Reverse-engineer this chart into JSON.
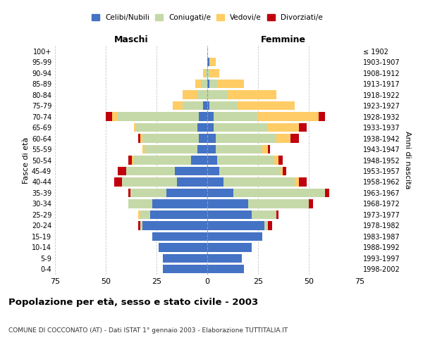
{
  "age_groups": [
    "0-4",
    "5-9",
    "10-14",
    "15-19",
    "20-24",
    "25-29",
    "30-34",
    "35-39",
    "40-44",
    "45-49",
    "50-54",
    "55-59",
    "60-64",
    "65-69",
    "70-74",
    "75-79",
    "80-84",
    "85-89",
    "90-94",
    "95-99",
    "100+"
  ],
  "birth_years": [
    "1998-2002",
    "1993-1997",
    "1988-1992",
    "1983-1987",
    "1978-1982",
    "1973-1977",
    "1968-1972",
    "1963-1967",
    "1958-1962",
    "1953-1957",
    "1948-1952",
    "1943-1947",
    "1938-1942",
    "1933-1937",
    "1928-1932",
    "1923-1927",
    "1918-1922",
    "1913-1917",
    "1908-1912",
    "1903-1907",
    "≤ 1902"
  ],
  "males": {
    "celibi": [
      22,
      22,
      24,
      27,
      32,
      28,
      27,
      20,
      15,
      16,
      8,
      5,
      4,
      5,
      4,
      2,
      0,
      0,
      0,
      0,
      0
    ],
    "coniugati": [
      0,
      0,
      0,
      0,
      1,
      5,
      12,
      18,
      27,
      24,
      28,
      26,
      28,
      30,
      40,
      10,
      5,
      3,
      1,
      0,
      0
    ],
    "vedovi": [
      0,
      0,
      0,
      0,
      0,
      1,
      0,
      0,
      0,
      0,
      1,
      1,
      1,
      1,
      3,
      5,
      7,
      3,
      1,
      0,
      0
    ],
    "divorziati": [
      0,
      0,
      0,
      0,
      1,
      0,
      0,
      1,
      4,
      4,
      2,
      0,
      1,
      0,
      3,
      0,
      0,
      0,
      0,
      0,
      0
    ]
  },
  "females": {
    "nubili": [
      18,
      17,
      22,
      27,
      28,
      22,
      20,
      13,
      8,
      6,
      5,
      4,
      4,
      3,
      3,
      1,
      0,
      1,
      0,
      1,
      0
    ],
    "coniugate": [
      0,
      0,
      0,
      0,
      2,
      12,
      30,
      45,
      35,
      30,
      28,
      23,
      30,
      27,
      22,
      14,
      10,
      4,
      1,
      0,
      0
    ],
    "vedove": [
      0,
      0,
      0,
      0,
      0,
      0,
      0,
      0,
      2,
      1,
      2,
      3,
      7,
      15,
      30,
      28,
      24,
      13,
      5,
      3,
      0
    ],
    "divorziate": [
      0,
      0,
      0,
      0,
      2,
      1,
      2,
      2,
      4,
      2,
      2,
      1,
      4,
      4,
      3,
      0,
      0,
      0,
      0,
      0,
      0
    ]
  },
  "colors": {
    "celibi": "#4472C4",
    "coniugati": "#C5D9A8",
    "vedovi": "#FFCC66",
    "divorziati": "#C0000C"
  },
  "title": "Popolazione per età, sesso e stato civile - 2003",
  "subtitle": "COMUNE DI COCCONATO (AT) - Dati ISTAT 1° gennaio 2003 - Elaborazione TUTTITALIA.IT",
  "xlabel_left": "Maschi",
  "xlabel_right": "Femmine",
  "ylabel_left": "Fasce di età",
  "ylabel_right": "Anni di nascita",
  "xlim": 75,
  "legend_labels": [
    "Celibi/Nubili",
    "Coniugati/e",
    "Vedovi/e",
    "Divorziati/e"
  ],
  "bg_color": "#FFFFFF",
  "grid_color": "#CCCCCC"
}
